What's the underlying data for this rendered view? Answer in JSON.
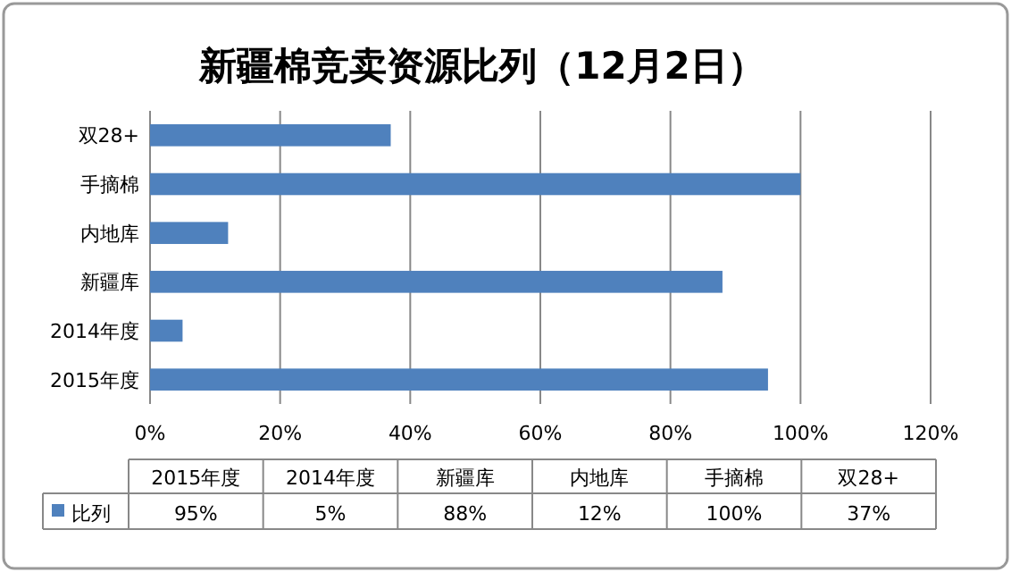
{
  "chart_data": {
    "type": "bar",
    "orientation": "horizontal",
    "title": "新疆棉竞卖资源比列（12月2日）",
    "categories": [
      "双28+",
      "手摘棉",
      "内地库",
      "新疆库",
      "2014年度",
      "2015年度"
    ],
    "series": [
      {
        "name": "比列",
        "color": "#4f81bd",
        "values": [
          37,
          100,
          12,
          88,
          5,
          95
        ]
      }
    ],
    "xlim": [
      0,
      120
    ],
    "xticks": [
      {
        "value": 0,
        "label": "0%"
      },
      {
        "value": 20,
        "label": "20%"
      },
      {
        "value": 40,
        "label": "40%"
      },
      {
        "value": 60,
        "label": "60%"
      },
      {
        "value": 80,
        "label": "80%"
      },
      {
        "value": 100,
        "label": "100%"
      },
      {
        "value": 120,
        "label": "120%"
      }
    ],
    "grid": "x",
    "legend": "bottom",
    "value_labels": [
      "37%",
      "100%",
      "12%",
      "88%",
      "5%",
      "95%"
    ]
  }
}
